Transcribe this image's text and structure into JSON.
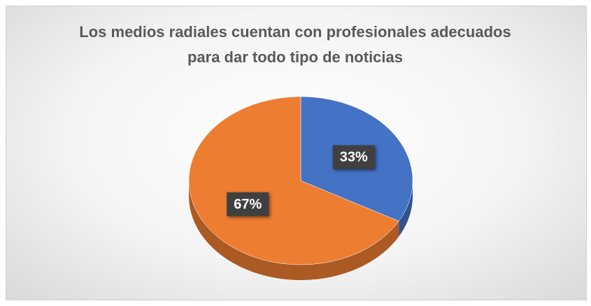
{
  "chart_data": {
    "type": "pie",
    "title": "Los medios radiales cuentan con profesionales adecuados para dar todo tipo de noticias",
    "values": [
      33,
      67
    ],
    "value_labels": [
      "33%",
      "67%"
    ],
    "colors": [
      "#4472c4",
      "#ed7d31"
    ]
  }
}
